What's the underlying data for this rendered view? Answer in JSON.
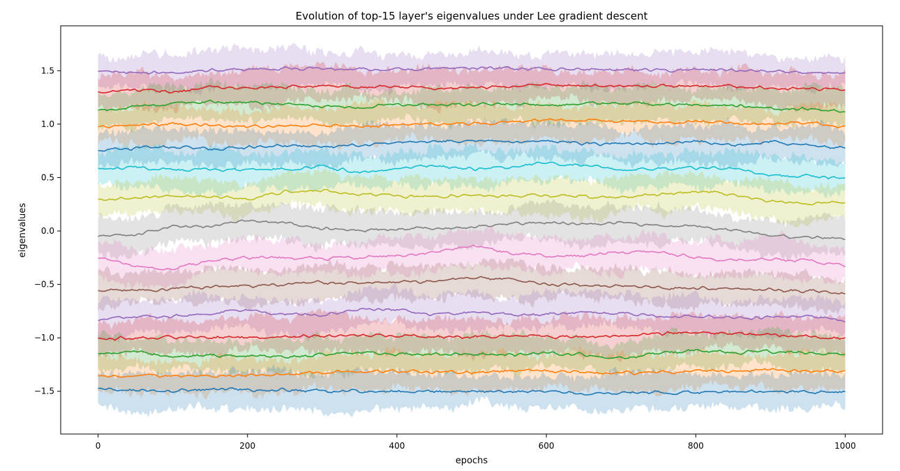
{
  "chart_data": {
    "type": "line",
    "title": "Evolution of top-15 layer's eigenvalues under Lee gradient descent",
    "xlabel": "epochs",
    "ylabel": "eigenvalues",
    "xlim": [
      -50,
      1050
    ],
    "ylim": [
      -1.9,
      1.92
    ],
    "x_ticks": [
      0,
      200,
      400,
      600,
      800,
      1000
    ],
    "x_tick_labels": [
      "0",
      "200",
      "400",
      "600",
      "800",
      "1000"
    ],
    "y_ticks": [
      -1.5,
      -1.0,
      -0.5,
      0.0,
      0.5,
      1.0,
      1.5
    ],
    "y_tick_labels": [
      "−1.5",
      "−1.0",
      "−0.5",
      "0.0",
      "0.5",
      "1.0",
      "1.5"
    ],
    "grid": false,
    "legend": "none",
    "band_halfwidth_approx": 0.16,
    "x": [
      0,
      50,
      100,
      150,
      200,
      250,
      300,
      350,
      400,
      450,
      500,
      550,
      600,
      650,
      700,
      750,
      800,
      850,
      900,
      950,
      1000
    ],
    "series": [
      {
        "color": "#9467bd",
        "values": [
          1.5,
          1.48,
          1.48,
          1.5,
          1.51,
          1.52,
          1.52,
          1.51,
          1.51,
          1.52,
          1.53,
          1.52,
          1.51,
          1.51,
          1.51,
          1.5,
          1.51,
          1.51,
          1.49,
          1.48,
          1.48
        ]
      },
      {
        "color": "#d62728",
        "values": [
          1.3,
          1.32,
          1.3,
          1.34,
          1.34,
          1.35,
          1.36,
          1.35,
          1.35,
          1.34,
          1.34,
          1.35,
          1.37,
          1.36,
          1.35,
          1.36,
          1.36,
          1.35,
          1.34,
          1.33,
          1.32
        ]
      },
      {
        "color": "#2ca02c",
        "values": [
          1.12,
          1.16,
          1.19,
          1.21,
          1.2,
          1.19,
          1.17,
          1.16,
          1.19,
          1.18,
          1.18,
          1.19,
          1.18,
          1.19,
          1.2,
          1.19,
          1.18,
          1.17,
          1.15,
          1.14,
          1.12
        ]
      },
      {
        "color": "#ff7f0e",
        "values": [
          0.98,
          0.99,
          1.0,
          0.99,
          0.98,
          0.98,
          0.99,
          0.98,
          0.99,
          1.0,
          1.0,
          1.02,
          1.04,
          1.03,
          1.03,
          1.02,
          1.02,
          1.01,
          1.0,
          1.02,
          0.97
        ]
      },
      {
        "color": "#1f77b4",
        "values": [
          0.75,
          0.78,
          0.79,
          0.77,
          0.78,
          0.8,
          0.78,
          0.8,
          0.83,
          0.84,
          0.85,
          0.83,
          0.84,
          0.82,
          0.81,
          0.82,
          0.84,
          0.8,
          0.83,
          0.81,
          0.77
        ]
      },
      {
        "color": "#17becf",
        "values": [
          0.58,
          0.6,
          0.57,
          0.58,
          0.57,
          0.58,
          0.6,
          0.55,
          0.58,
          0.61,
          0.58,
          0.6,
          0.64,
          0.61,
          0.57,
          0.58,
          0.59,
          0.58,
          0.53,
          0.51,
          0.5
        ]
      },
      {
        "color": "#bcbd22",
        "values": [
          0.28,
          0.32,
          0.33,
          0.33,
          0.3,
          0.37,
          0.38,
          0.34,
          0.33,
          0.32,
          0.33,
          0.33,
          0.34,
          0.32,
          0.31,
          0.34,
          0.37,
          0.34,
          0.28,
          0.26,
          0.27
        ]
      },
      {
        "color": "#7f7f7f",
        "values": [
          -0.03,
          -0.04,
          0.05,
          0.04,
          0.1,
          0.08,
          0.02,
          0.01,
          0.02,
          0.02,
          0.03,
          0.07,
          0.08,
          0.06,
          0.08,
          0.05,
          0.05,
          0.0,
          -0.04,
          -0.06,
          -0.07
        ]
      },
      {
        "color": "#e377c2",
        "values": [
          -0.24,
          -0.32,
          -0.36,
          -0.27,
          -0.25,
          -0.25,
          -0.26,
          -0.25,
          -0.23,
          -0.2,
          -0.14,
          -0.21,
          -0.23,
          -0.23,
          -0.2,
          -0.19,
          -0.25,
          -0.27,
          -0.26,
          -0.28,
          -0.32
        ]
      },
      {
        "color": "#8c564b",
        "values": [
          -0.55,
          -0.56,
          -0.54,
          -0.52,
          -0.52,
          -0.5,
          -0.48,
          -0.49,
          -0.47,
          -0.47,
          -0.44,
          -0.45,
          -0.5,
          -0.51,
          -0.51,
          -0.53,
          -0.54,
          -0.53,
          -0.55,
          -0.56,
          -0.59
        ]
      },
      {
        "color": "#9467bd",
        "values": [
          -0.84,
          -0.8,
          -0.8,
          -0.77,
          -0.74,
          -0.78,
          -0.79,
          -0.73,
          -0.74,
          -0.78,
          -0.76,
          -0.78,
          -0.78,
          -0.75,
          -0.77,
          -0.8,
          -0.8,
          -0.81,
          -0.81,
          -0.79,
          -0.85
        ]
      },
      {
        "color": "#d62728",
        "values": [
          -1.01,
          -1.0,
          -0.99,
          -1.0,
          -1.0,
          -0.99,
          -0.98,
          -0.98,
          -0.98,
          -0.99,
          -0.99,
          -0.98,
          -0.99,
          -0.99,
          -0.98,
          -0.96,
          -0.95,
          -0.96,
          -0.97,
          -0.99,
          -1.01
        ]
      },
      {
        "color": "#2ca02c",
        "values": [
          -1.14,
          -1.13,
          -1.17,
          -1.16,
          -1.17,
          -1.18,
          -1.15,
          -1.14,
          -1.15,
          -1.15,
          -1.16,
          -1.16,
          -1.14,
          -1.16,
          -1.19,
          -1.14,
          -1.12,
          -1.14,
          -1.13,
          -1.14,
          -1.16
        ]
      },
      {
        "color": "#ff7f0e",
        "values": [
          -1.35,
          -1.36,
          -1.35,
          -1.36,
          -1.35,
          -1.35,
          -1.32,
          -1.32,
          -1.31,
          -1.32,
          -1.32,
          -1.31,
          -1.31,
          -1.32,
          -1.33,
          -1.32,
          -1.31,
          -1.31,
          -1.3,
          -1.31,
          -1.31
        ]
      },
      {
        "color": "#1f77b4",
        "values": [
          -1.48,
          -1.49,
          -1.5,
          -1.48,
          -1.48,
          -1.49,
          -1.5,
          -1.5,
          -1.51,
          -1.5,
          -1.5,
          -1.5,
          -1.51,
          -1.52,
          -1.51,
          -1.51,
          -1.51,
          -1.51,
          -1.5,
          -1.51,
          -1.5
        ]
      }
    ]
  }
}
